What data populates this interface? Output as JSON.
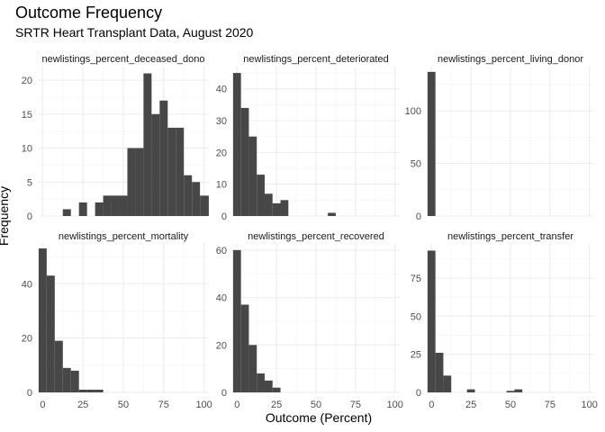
{
  "title": "Outcome Frequency",
  "subtitle": "SRTR Heart Transplant Data, August 2020",
  "xlabel": "Outcome (Percent)",
  "ylabel": "Frequency",
  "chart_data": {
    "type": "bar",
    "title": "Outcome Frequency",
    "subtitle": "SRTR Heart Transplant Data, August 2020",
    "xlabel": "Outcome (Percent)",
    "ylabel": "Frequency",
    "binwidth": 5,
    "grid": true,
    "xlim": [
      -3,
      103
    ],
    "x_ticks": [
      0,
      25,
      50,
      75,
      100
    ],
    "bar_color": "#474747",
    "facets": [
      {
        "name": "newlistings_percent_deceased_donor",
        "strip_label": "newlistings_percent_deceased_dono",
        "ylim": [
          0,
          22
        ],
        "y_ticks": [
          0,
          5,
          10,
          15,
          20
        ],
        "bins": [
          {
            "x": 15,
            "y": 1
          },
          {
            "x": 25,
            "y": 2
          },
          {
            "x": 35,
            "y": 2
          },
          {
            "x": 40,
            "y": 3
          },
          {
            "x": 45,
            "y": 3
          },
          {
            "x": 50,
            "y": 3
          },
          {
            "x": 55,
            "y": 10
          },
          {
            "x": 60,
            "y": 10
          },
          {
            "x": 65,
            "y": 21
          },
          {
            "x": 70,
            "y": 15
          },
          {
            "x": 75,
            "y": 17
          },
          {
            "x": 80,
            "y": 13
          },
          {
            "x": 85,
            "y": 13
          },
          {
            "x": 90,
            "y": 6
          },
          {
            "x": 95,
            "y": 5
          },
          {
            "x": 100,
            "y": 3
          },
          {
            "x": 105,
            "y": 3
          }
        ]
      },
      {
        "name": "newlistings_percent_deteriorated",
        "strip_label": "newlistings_percent_deteriorated",
        "ylim": [
          0,
          47
        ],
        "y_ticks": [
          0,
          10,
          20,
          30,
          40
        ],
        "bins": [
          {
            "x": 0,
            "y": 45
          },
          {
            "x": 5,
            "y": 34
          },
          {
            "x": 10,
            "y": 25
          },
          {
            "x": 15,
            "y": 13
          },
          {
            "x": 20,
            "y": 7
          },
          {
            "x": 25,
            "y": 4
          },
          {
            "x": 30,
            "y": 5
          },
          {
            "x": 60,
            "y": 1
          }
        ]
      },
      {
        "name": "newlistings_percent_living_donor",
        "strip_label": "newlistings_percent_living_donor",
        "ylim": [
          0,
          142
        ],
        "y_ticks": [
          0,
          50,
          100
        ],
        "bins": [
          {
            "x": 0,
            "y": 137
          }
        ]
      },
      {
        "name": "newlistings_percent_mortality",
        "strip_label": "newlistings_percent_mortality",
        "ylim": [
          0,
          55
        ],
        "y_ticks": [
          0,
          20,
          40
        ],
        "bins": [
          {
            "x": 0,
            "y": 53
          },
          {
            "x": 5,
            "y": 43
          },
          {
            "x": 10,
            "y": 19
          },
          {
            "x": 15,
            "y": 9
          },
          {
            "x": 20,
            "y": 8
          },
          {
            "x": 25,
            "y": 1
          },
          {
            "x": 30,
            "y": 1
          },
          {
            "x": 35,
            "y": 1
          }
        ]
      },
      {
        "name": "newlistings_percent_recovered",
        "strip_label": "newlistings_percent_recovered",
        "ylim": [
          0,
          63
        ],
        "y_ticks": [
          0,
          20,
          40,
          60
        ],
        "bins": [
          {
            "x": 0,
            "y": 60
          },
          {
            "x": 5,
            "y": 37
          },
          {
            "x": 10,
            "y": 20
          },
          {
            "x": 15,
            "y": 8
          },
          {
            "x": 20,
            "y": 5
          },
          {
            "x": 25,
            "y": 2
          }
        ]
      },
      {
        "name": "newlistings_percent_transfer",
        "strip_label": "newlistings_percent_transfer",
        "ylim": [
          0,
          98
        ],
        "y_ticks": [
          0,
          25,
          50,
          75
        ],
        "bins": [
          {
            "x": 0,
            "y": 93
          },
          {
            "x": 5,
            "y": 26
          },
          {
            "x": 10,
            "y": 11
          },
          {
            "x": 25,
            "y": 2
          },
          {
            "x": 50,
            "y": 1
          },
          {
            "x": 55,
            "y": 2
          }
        ]
      }
    ]
  }
}
